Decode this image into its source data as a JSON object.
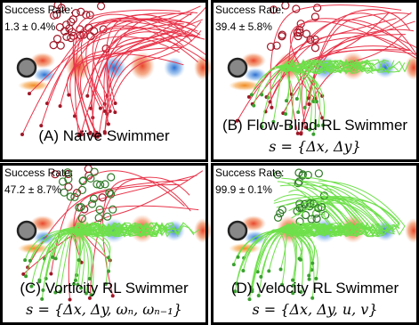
{
  "panels": [
    {
      "success_label": "Success Rate:",
      "success_rate": "1.3 ± 0.4%",
      "caption": "(A) Naïve Swimmer"
    },
    {
      "success_label": "Success Rate:",
      "success_rate": "39.4 ± 5.8%",
      "caption": "(B) Flow-Blind RL Swimmer",
      "state": "s = {Δx, Δy}"
    },
    {
      "success_label": "Success Rate:",
      "success_rate": "47.2 ± 8.7%",
      "caption": "(C) Vorticity RL Swimmer",
      "state": "s = {Δx, Δy, ωₙ, ωₙ₋₁}"
    },
    {
      "success_label": "Success Rate:",
      "success_rate": "99.9 ± 0.1%",
      "caption": "(D) Velocity RL Swimmer",
      "state": "s = {Δx, Δy, u, v}"
    }
  ]
}
